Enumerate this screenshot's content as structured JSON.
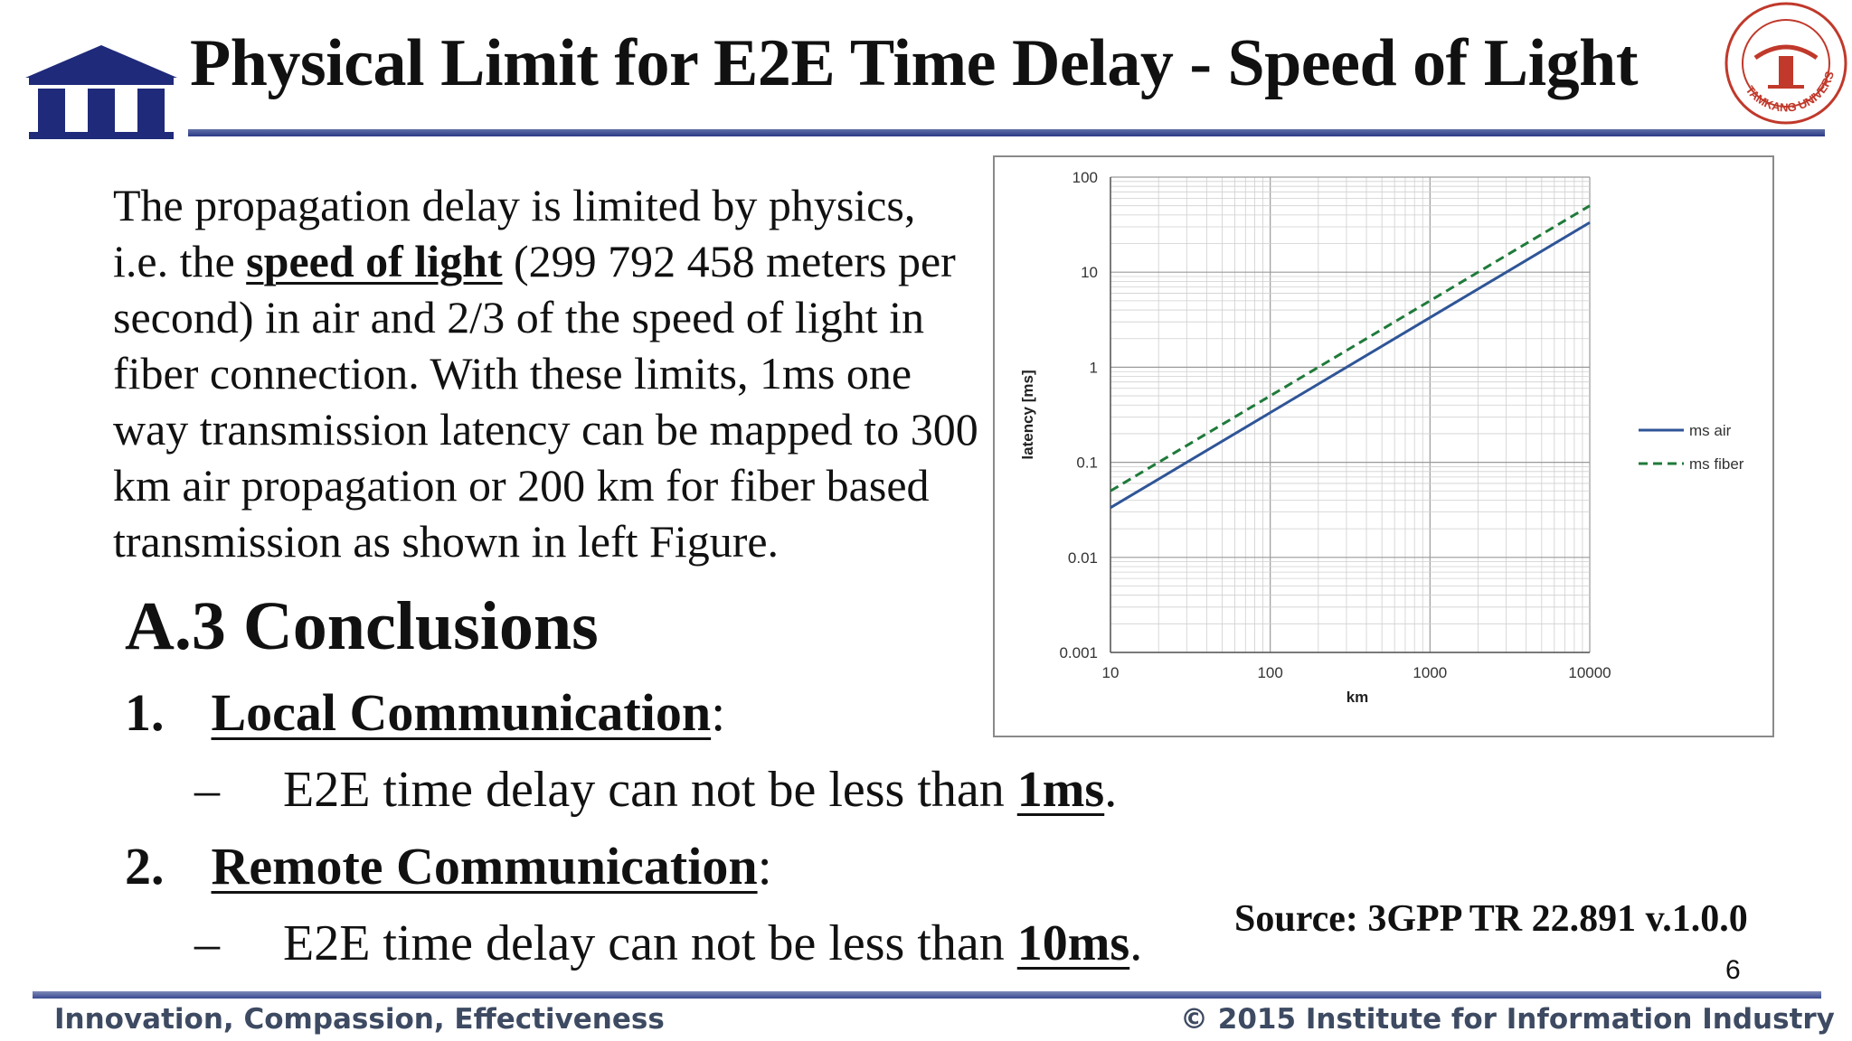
{
  "title": "Physical Limit for E2E Time Delay - Speed of Light",
  "paragraph": {
    "part1": "The propagation delay is limited by physics, i.e. the ",
    "highlight": "speed of light",
    "part2": " (299 792 458 meters per second) in air and 2/3 of the speed of light in fiber connection. With these limits, 1ms one way transmission latency can be mapped to 300 km air propagation or 200 km for fiber based transmission as shown in left Figure."
  },
  "conclusions": {
    "heading": "A.3 Conclusions",
    "items": [
      {
        "number": "1.",
        "title": "Local Communication",
        "colon": ":",
        "dash": "–",
        "text": "E2E time delay can not be less than ",
        "value": "1ms",
        "end": "."
      },
      {
        "number": "2.",
        "title": "Remote Communication",
        "colon": ":",
        "dash": "–",
        "text": "E2E time delay can not be less than ",
        "value": "10ms",
        "end": "."
      }
    ]
  },
  "source": "Source: 3GPP TR 22.891 v.1.0.0",
  "page_number": "6",
  "footer": {
    "left": "Innovation, Compassion, Effectiveness",
    "right": "© 2015 Institute for Information Industry"
  },
  "logos": {
    "left": "III",
    "seal": "TAMKANG UNIVERSITY"
  },
  "colors": {
    "rule": "#2b3a86",
    "air_line": "#2f5597",
    "fiber_line": "#1f7a3a",
    "footer_text": "#3d4a62"
  },
  "chart_data": {
    "type": "line",
    "xlabel": "km",
    "ylabel": "latency [ms]",
    "x_scale": "log",
    "y_scale": "log",
    "xlim": [
      10,
      10000
    ],
    "ylim": [
      0.001,
      100
    ],
    "x_ticks": [
      "10",
      "100",
      "1000",
      "10000"
    ],
    "y_ticks": [
      "100",
      "10",
      "1",
      "0.1",
      "0.01",
      "0.001"
    ],
    "grid": true,
    "legend": "right",
    "series": [
      {
        "name": "ms air",
        "style": "solid",
        "x": [
          10,
          100,
          1000,
          10000
        ],
        "y": [
          0.0333,
          0.333,
          3.33,
          33.3
        ]
      },
      {
        "name": "ms fiber",
        "style": "dashed",
        "x": [
          10,
          100,
          1000,
          10000
        ],
        "y": [
          0.05,
          0.5,
          5,
          50
        ]
      }
    ]
  }
}
